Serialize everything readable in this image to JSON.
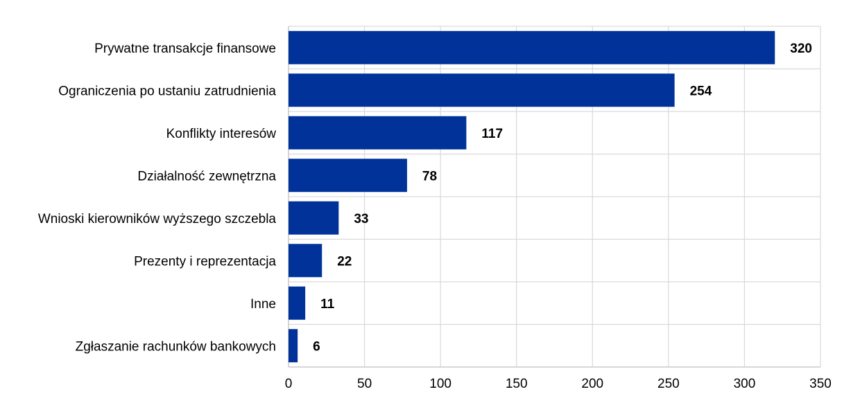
{
  "chart_data": {
    "type": "bar",
    "orientation": "horizontal",
    "title": "",
    "xlabel": "",
    "ylabel": "",
    "categories": [
      "Prywatne transakcje finansowe",
      "Ograniczenia po ustaniu zatrudnienia",
      "Konflikty interesów",
      "Działalność zewnętrzna",
      "Wnioski kierowników wyższego szczebla",
      "Prezenty i reprezentacja",
      "Inne",
      "Zgłaszanie rachunków bankowych"
    ],
    "values": [
      320,
      254,
      117,
      78,
      33,
      22,
      11,
      6
    ],
    "value_labels": [
      "320",
      "254",
      "117",
      "78",
      "33",
      "22",
      "11",
      "6"
    ],
    "xlim": [
      0,
      350
    ],
    "xticks": [
      0,
      50,
      100,
      150,
      200,
      250,
      300,
      350
    ],
    "xtick_labels": [
      "0",
      "50",
      "100",
      "150",
      "200",
      "250",
      "300",
      "350"
    ],
    "grid": true,
    "legend": "none",
    "bar_color": "#003299"
  }
}
